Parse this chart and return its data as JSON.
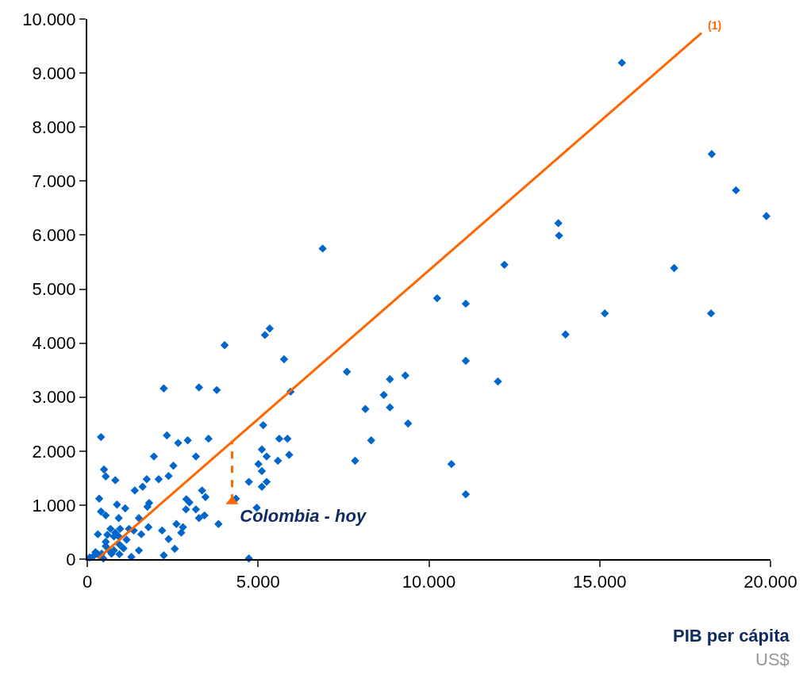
{
  "chart_data": {
    "type": "scatter",
    "xlabel": "PIB per cápita",
    "xlim": [
      0,
      20000
    ],
    "ylim": [
      0,
      10000
    ],
    "xticks": [
      0,
      {
        "value": 5000,
        "label": "5.000"
      },
      {
        "value": 10000,
        "label": "10.000"
      },
      {
        "value": 15000,
        "label": "15.000"
      },
      {
        "value": 20000,
        "label": "20.000"
      }
    ],
    "yticks": [
      0,
      {
        "value": 1000,
        "label": "1.000"
      },
      {
        "value": 2000,
        "label": "2.000"
      },
      {
        "value": 3000,
        "label": "3.000"
      },
      {
        "value": 4000,
        "label": "4.000"
      },
      {
        "value": 5000,
        "label": "5.000"
      },
      {
        "value": 6000,
        "label": "6.000"
      },
      {
        "value": 7000,
        "label": "7.000"
      },
      {
        "value": 8000,
        "label": "8.000"
      },
      {
        "value": 9000,
        "label": "9.000"
      },
      {
        "value": 10000,
        "label": "10.000"
      }
    ],
    "legend": false,
    "annotations": [
      {
        "text": "(1)",
        "x": 17980,
        "y": 9740
      },
      "US$"
    ],
    "series": [
      {
        "marker": "diamond",
        "color": "#0066cc",
        "x": [
          15650,
          18280,
          18990,
          19880,
          13790,
          13810,
          6890,
          12210,
          17180,
          10240,
          11080,
          15150,
          18260,
          14000,
          11080,
          7600,
          8860,
          9310,
          12020,
          8680,
          8140,
          8860,
          9390,
          8310,
          7840,
          10660,
          11080,
          5200,
          5340,
          4020,
          5760,
          2240,
          3270,
          3790,
          5950,
          5150,
          2330,
          2660,
          2940,
          3550,
          5620,
          5860,
          1950,
          3180,
          5110,
          5250,
          5580,
          5910,
          2520,
          2090,
          2380,
          5010,
          5110,
          4730,
          5250,
          5110,
          3360,
          3460,
          2900,
          2990,
          2890,
          3180,
          3270,
          3430,
          4350,
          4960,
          2610,
          2800,
          2750,
          2190,
          2380,
          3840,
          2560,
          2240,
          4730,
          400,
          490,
          540,
          820,
          1740,
          1390,
          1620,
          350,
          1810,
          870,
          1110,
          1760,
          400,
          540,
          920,
          1510,
          1790,
          1580,
          1360,
          1220,
          960,
          680,
          820,
          310,
          590,
          780,
          920,
          1150,
          540,
          940,
          1060,
          1510,
          1290,
          540,
          780,
          640,
          940,
          420,
          70,
          190,
          310,
          470,
          240,
          710
        ],
        "values": [
          9190,
          7500,
          6830,
          6350,
          6220,
          5990,
          5750,
          5450,
          5390,
          4830,
          4730,
          4550,
          4550,
          4160,
          3670,
          3470,
          3330,
          3400,
          3290,
          3040,
          2780,
          2810,
          2510,
          2200,
          1820,
          1760,
          1200,
          4150,
          4270,
          3960,
          3700,
          3160,
          3180,
          3130,
          3100,
          2480,
          2290,
          2150,
          2200,
          2230,
          2230,
          2230,
          1900,
          1900,
          2030,
          1900,
          1820,
          1930,
          1730,
          1480,
          1540,
          1760,
          1630,
          1430,
          1430,
          1340,
          1270,
          1150,
          1110,
          1050,
          920,
          920,
          760,
          810,
          1120,
          950,
          650,
          590,
          490,
          530,
          370,
          650,
          190,
          70,
          10,
          2260,
          1660,
          1530,
          1460,
          1480,
          1270,
          1340,
          1120,
          1040,
          1010,
          940,
          970,
          880,
          810,
          760,
          760,
          590,
          460,
          530,
          560,
          560,
          560,
          490,
          460,
          450,
          420,
          420,
          360,
          320,
          270,
          200,
          160,
          40,
          240,
          160,
          160,
          90,
          100,
          30,
          60,
          90,
          10,
          130,
          100
        ]
      },
      {
        "type": "line",
        "color": "#ff6600",
        "line_style": "solid",
        "x": [
          310,
          17980
        ],
        "values": [
          10,
          9740
        ]
      },
      {
        "type": "line",
        "color": "#ff6600",
        "line_style": "dashed",
        "x": [
          4240,
          4240
        ],
        "values": [
          1070,
          2190
        ]
      },
      {
        "name": "Colombia - hoy",
        "marker": "triangle",
        "color": "#ff6600",
        "x": [
          4240
        ],
        "values": [
          1070
        ]
      }
    ]
  }
}
